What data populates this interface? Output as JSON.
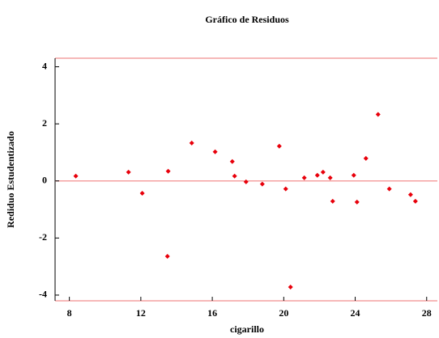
{
  "chart_data": {
    "type": "scatter",
    "title": "Gráfico de Residuos",
    "xlabel": "cigarillo",
    "ylabel": "Rediduo Estudentizado",
    "color": "#e8000b",
    "reference_line": 0,
    "reference_color": "#f4a0a0",
    "x": [
      8.36,
      11.31,
      12.08,
      13.53,
      13.49,
      14.85,
      16.16,
      17.12,
      17.25,
      17.89,
      18.8,
      19.75,
      20.11,
      20.38,
      21.15,
      21.88,
      22.2,
      22.6,
      22.74,
      23.92,
      24.1,
      24.6,
      25.28,
      25.91,
      27.1,
      27.37
    ],
    "values": [
      0.17,
      0.31,
      -0.43,
      0.34,
      -2.64,
      1.33,
      1.02,
      0.68,
      0.17,
      -0.03,
      -0.11,
      1.22,
      -0.28,
      -3.72,
      0.11,
      0.2,
      0.31,
      0.11,
      -0.71,
      0.2,
      -0.74,
      0.79,
      2.33,
      -0.28,
      -0.48,
      -0.71
    ],
    "xlim": [
      7.2,
      28.6
    ],
    "xticks": [
      8,
      12,
      16,
      20,
      24,
      28
    ],
    "ylim": [
      -4.2,
      4.3
    ],
    "yticks": [
      -4,
      -2,
      0,
      2,
      4
    ]
  }
}
